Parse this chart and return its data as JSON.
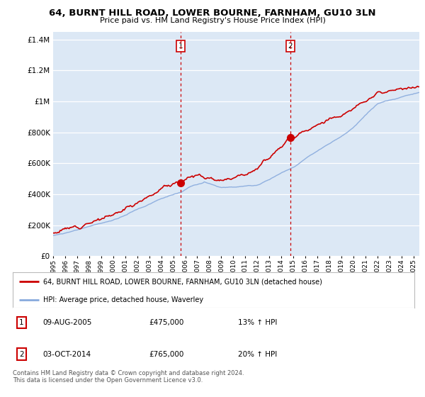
{
  "title": "64, BURNT HILL ROAD, LOWER BOURNE, FARNHAM, GU10 3LN",
  "subtitle": "Price paid vs. HM Land Registry's House Price Index (HPI)",
  "legend_line1": "64, BURNT HILL ROAD, LOWER BOURNE, FARNHAM, GU10 3LN (detached house)",
  "legend_line2": "HPI: Average price, detached house, Waverley",
  "table_rows": [
    {
      "num": "1",
      "date": "09-AUG-2005",
      "price": "£475,000",
      "change": "13% ↑ HPI"
    },
    {
      "num": "2",
      "date": "03-OCT-2014",
      "price": "£765,000",
      "change": "20% ↑ HPI"
    }
  ],
  "footer": "Contains HM Land Registry data © Crown copyright and database right 2024.\nThis data is licensed under the Open Government Licence v3.0.",
  "vline1_x": 2005.62,
  "vline2_x": 2014.75,
  "dot1_x": 2005.62,
  "dot1_y": 475000,
  "dot2_x": 2014.75,
  "dot2_y": 765000,
  "price_color": "#cc0000",
  "hpi_color": "#88aadd",
  "dot_color": "#cc0000",
  "background_color": "#ffffff",
  "plot_bg": "#dce8f5",
  "ylim": [
    0,
    1450000
  ],
  "xlim_start": 1995.0,
  "xlim_end": 2025.5
}
